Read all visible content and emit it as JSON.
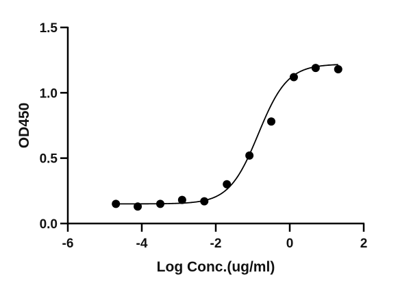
{
  "chart_data": {
    "type": "scatter",
    "title": "",
    "xlabel": "Log Conc.(ug/ml)",
    "ylabel": "OD450",
    "xlim": [
      -6,
      2
    ],
    "ylim": [
      0,
      1.5
    ],
    "xticks": [
      -6,
      -4,
      -2,
      0,
      2
    ],
    "xtick_labels": [
      "-6",
      "-4",
      "-2",
      "0",
      "2"
    ],
    "yticks": [
      0,
      0.5,
      1.0,
      1.5
    ],
    "ytick_labels": [
      "0.0",
      "0.5",
      "1.0",
      "1.5"
    ],
    "grid": false,
    "legend": null,
    "series": [
      {
        "name": "OD450",
        "marker": "filled-circle",
        "color": "#000000",
        "x": [
          -4.7,
          -4.11,
          -3.5,
          -2.91,
          -2.31,
          -1.7,
          -1.09,
          -0.5,
          0.11,
          0.7,
          1.31
        ],
        "y": [
          0.15,
          0.13,
          0.15,
          0.18,
          0.17,
          0.3,
          0.52,
          0.78,
          1.12,
          1.19,
          1.18
        ]
      }
    ],
    "fit_curve": {
      "type": "4PL sigmoid",
      "bottom": 0.15,
      "top": 1.22,
      "log_ec50": -0.85,
      "hill_slope": 1.1,
      "color": "#000000"
    }
  }
}
